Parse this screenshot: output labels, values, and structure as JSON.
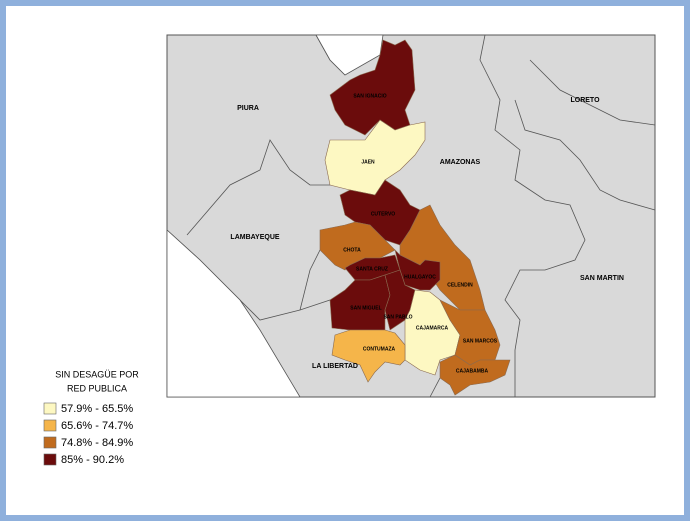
{
  "map": {
    "regions": [
      "PIURA",
      "AMAZONAS",
      "LORETO",
      "LAMBAYEQUE",
      "SAN MARTIN",
      "LA LIBERTAD"
    ],
    "provinces": [
      {
        "name": "SAN IGNACIO",
        "color": "#6b0c0c"
      },
      {
        "name": "JAEN",
        "color": "#fdf8c2"
      },
      {
        "name": "CUTERVO",
        "color": "#6b0c0c"
      },
      {
        "name": "CHOTA",
        "color": "#c06b1e"
      },
      {
        "name": "CELENDIN",
        "color": "#c06b1e"
      },
      {
        "name": "HUALGAYOC",
        "color": "#6b0c0c"
      },
      {
        "name": "SANTA CRUZ",
        "color": "#6b0c0c"
      },
      {
        "name": "SAN MIGUEL",
        "color": "#6b0c0c"
      },
      {
        "name": "SAN PABLO",
        "color": "#6b0c0c"
      },
      {
        "name": "CAJAMARCA",
        "color": "#fdf8c2"
      },
      {
        "name": "CONTUMAZA",
        "color": "#f5b54a"
      },
      {
        "name": "SAN MARCOS",
        "color": "#c06b1e"
      },
      {
        "name": "CAJABAMBA",
        "color": "#c06b1e"
      }
    ]
  },
  "legend": {
    "title": [
      "SIN DESAGÜE POR",
      "RED PUBLICA"
    ],
    "items": [
      {
        "label": "57.9% - 65.5%",
        "color": "#fdf8c2"
      },
      {
        "label": "65.6% - 74.7%",
        "color": "#f5b54a"
      },
      {
        "label": "74.8% - 84.9%",
        "color": "#c06b1e"
      },
      {
        "label": "85% - 90.2%",
        "color": "#6b0c0c"
      }
    ]
  }
}
